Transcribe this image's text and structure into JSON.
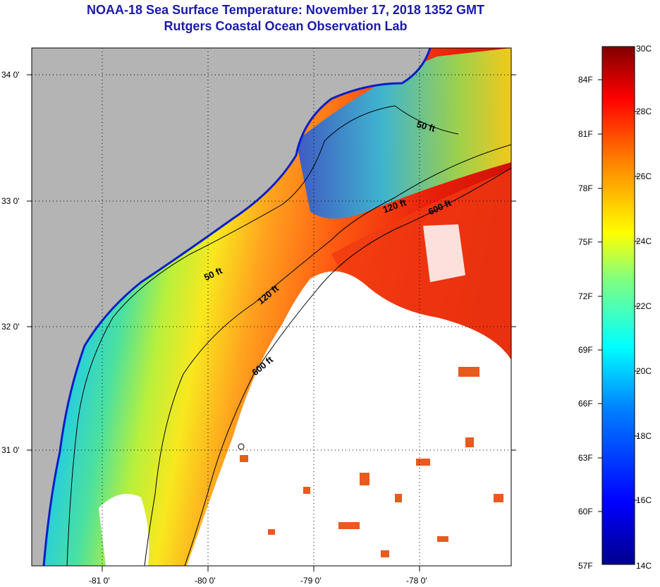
{
  "title": {
    "line1": "NOAA-18 Sea Surface Temperature:  November 17, 2018 1352 GMT",
    "line2": "Rutgers Coastal Ocean Observation Lab"
  },
  "axes": {
    "lat_labels": [
      "34 0'",
      "33 0'",
      "32 0'",
      "31 0'"
    ],
    "lon_labels": [
      "-81 0'",
      "-80 0'",
      "-79 0'",
      "-78 0'"
    ]
  },
  "contours": {
    "fifty_a": "50 ft",
    "fifty_b": "50 ft",
    "onetwenty_a": "120 ft",
    "onetwenty_b": "120 ft",
    "sixhundred_a": "600 ft",
    "sixhundred_b": "600 ft"
  },
  "colorbar": {
    "fahrenheit": [
      "84F",
      "81F",
      "78F",
      "75F",
      "72F",
      "69F",
      "66F",
      "63F",
      "60F",
      "57F"
    ],
    "celsius": [
      "30C",
      "28C",
      "26C",
      "24C",
      "22C",
      "20C",
      "18C",
      "16C",
      "14C"
    ]
  },
  "colors": {
    "land": "#b4b4b4",
    "cloud": "#ffffff",
    "title": "#1a1aa8"
  }
}
